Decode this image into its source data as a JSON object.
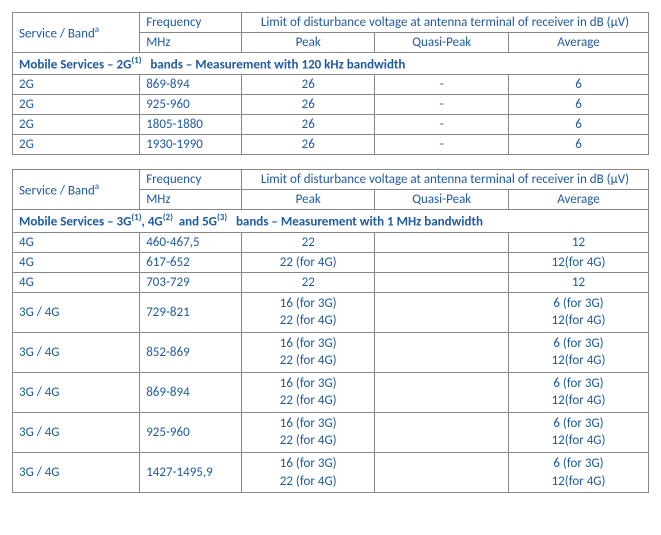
{
  "table1": {
    "header": {
      "serviceBand": "Service / Band",
      "serviceBandSup": "a",
      "frequency": "Frequency",
      "mhz": "MHz",
      "limitTitle": "Limit of disturbance voltage at antenna terminal of receiver in dB (µV)",
      "peak": "Peak",
      "quasiPeak": "Quasi-Peak",
      "average": "Average"
    },
    "sectionHeader": "Mobile Services – 2G(1)   bands – Measurement with 120 kHz bandwidth",
    "sectionSupIdx": "(1)",
    "sectionPrefix": "Mobile Services – 2G",
    "sectionSuffix": "   bands – Measurement with 120 kHz bandwidth",
    "rows": [
      {
        "svc": "2G",
        "freq": "869-894",
        "peak": "26",
        "qp": "-",
        "avg": "6"
      },
      {
        "svc": "2G",
        "freq": "925-960",
        "peak": "26",
        "qp": "-",
        "avg": "6"
      },
      {
        "svc": "2G",
        "freq": "1805-1880",
        "peak": "26",
        "qp": "-",
        "avg": "6"
      },
      {
        "svc": "2G",
        "freq": "1930-1990",
        "peak": "26",
        "qp": "-",
        "avg": "6"
      }
    ]
  },
  "table2": {
    "header": {
      "serviceBand": "Service / Band",
      "serviceBandSup": "a",
      "frequency": "Frequency",
      "mhz": "MHz",
      "limitTitle": "Limit of disturbance voltage at antenna terminal of receiver in dB (µV)",
      "peak": "Peak",
      "quasiPeak": "Quasi-Peak",
      "average": "Average"
    },
    "sectionPrefix": "Mobile Services – 3G",
    "sectionSup1": "(1)",
    "sectionMid1": ", 4G",
    "sectionSup2": "(2)",
    "sectionMid2": "  and 5G",
    "sectionSup3": "(3)",
    "sectionSuffix": "   bands – Measurement with 1 MHz bandwidth",
    "rows": [
      {
        "svc": "4G",
        "freq": "460-467,5",
        "peak": [
          "22"
        ],
        "qp": [
          ""
        ],
        "avg": [
          "12"
        ]
      },
      {
        "svc": "4G",
        "freq": "617-652",
        "peak": [
          "22 (for 4G)"
        ],
        "qp": [
          ""
        ],
        "avg": [
          "12(for 4G)"
        ]
      },
      {
        "svc": "4G",
        "freq": "703-729",
        "peak": [
          "22"
        ],
        "qp": [
          ""
        ],
        "avg": [
          "12"
        ]
      },
      {
        "svc": "3G / 4G",
        "freq": "729-821",
        "peak": [
          "16 (for 3G)",
          "22 (for 4G)"
        ],
        "qp": [
          "",
          ""
        ],
        "avg": [
          "6 (for 3G)",
          "12(for 4G)"
        ]
      },
      {
        "svc": "3G / 4G",
        "freq": "852-869",
        "peak": [
          "16 (for 3G)",
          "22 (for 4G)"
        ],
        "qp": [
          "",
          ""
        ],
        "avg": [
          "6 (for 3G)",
          "12(for 4G)"
        ]
      },
      {
        "svc": "3G / 4G",
        "freq": "869-894",
        "peak": [
          "16 (for 3G)",
          "22 (for 4G)"
        ],
        "qp": [
          "",
          ""
        ],
        "avg": [
          "6 (for 3G)",
          "12(for 4G)"
        ]
      },
      {
        "svc": "3G / 4G",
        "freq": "925-960",
        "peak": [
          "16 (for 3G)",
          "22 (for 4G)"
        ],
        "qp": [
          "",
          ""
        ],
        "avg": [
          "6 (for 3G)",
          "12(for 4G)"
        ]
      },
      {
        "svc": "3G / 4G",
        "freq": "1427-1495,9",
        "peak": [
          "16 (for 3G)",
          "22 (for 4G)"
        ],
        "qp": [
          "",
          ""
        ],
        "avg": [
          "6 (for 3G)",
          "12(for 4G)"
        ]
      }
    ]
  }
}
